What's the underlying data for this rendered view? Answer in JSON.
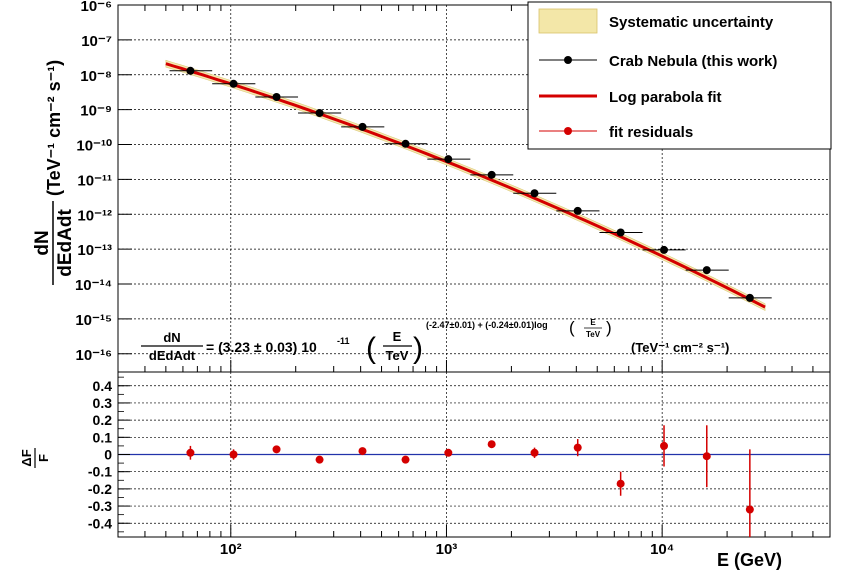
{
  "chart_data": [
    {
      "type": "scatter",
      "panel": "spectrum",
      "xscale": "log",
      "yscale": "log",
      "xlim": [
        30,
        60000
      ],
      "ylim": [
        3e-17,
        1e-06
      ],
      "grid": true,
      "ylabel_fraction": {
        "numerator": "dN",
        "denominator": "dEdAdt"
      },
      "ylabel_units": "(TeV⁻¹ cm⁻² s⁻¹)",
      "x_tick_labels": [
        "10²",
        "10³",
        "10⁴"
      ],
      "x_tick_values": [
        100,
        1000,
        10000
      ],
      "y_tick_labels": [
        "10⁻¹⁶",
        "10⁻¹⁵",
        "10⁻¹⁴",
        "10⁻¹³",
        "10⁻¹²",
        "10⁻¹¹",
        "10⁻¹⁰",
        "10⁻⁹",
        "10⁻⁸",
        "10⁻⁷",
        "10⁻⁶"
      ],
      "y_tick_values": [
        1e-16,
        1e-15,
        1e-14,
        1e-13,
        1e-12,
        1e-11,
        1e-10,
        1e-09,
        1e-08,
        1e-07,
        1e-06
      ],
      "legend": {
        "placement": "top-right",
        "entries": [
          {
            "label": "Systematic uncertainty",
            "symbol": "band",
            "color": "#e6d27a"
          },
          {
            "label": "Crab Nebula (this work)",
            "symbol": "marker-line",
            "color": "#000000"
          },
          {
            "label": "Log parabola fit",
            "symbol": "line",
            "color": "#d40000"
          },
          {
            "label": "fit residuals",
            "symbol": "marker-line",
            "color": "#d40000"
          }
        ]
      },
      "fit": {
        "function": "log parabola",
        "norm": 3.23e-11,
        "index": -2.47,
        "curvature": -0.24,
        "e0_TeV": 1,
        "e_range_GeV": [
          50,
          30000
        ],
        "color": "#d40000"
      },
      "formula": {
        "frac_num": "dN",
        "frac_den": "dEdAdt",
        "eq_part": "= (3.23 ± 0.03) 10",
        "exp_part": "-11",
        "e_num": "E",
        "e_den": "TeV",
        "power_part": "(-2.47±0.01) + (-0.24±0.01)log",
        "units": "(TeV⁻¹ cm⁻² s⁻¹)"
      },
      "series": [
        {
          "name": "Crab Nebula (this work)",
          "color": "#000000",
          "x": [
            65,
            103,
            163,
            258,
            408,
            646,
            1020,
            1620,
            2560,
            4060,
            6420,
            10200,
            16100,
            25500
          ],
          "xerr_low": [
            52,
            82,
            130,
            205,
            325,
            515,
            815,
            1290,
            2040,
            3230,
            5120,
            8110,
            12850,
            20350
          ],
          "xerr_high": [
            82,
            130,
            205,
            325,
            515,
            815,
            1290,
            2040,
            3230,
            5120,
            8110,
            12850,
            20350,
            32200
          ],
          "y": [
            1.3e-08,
            5.5e-09,
            2.3e-09,
            8e-10,
            3.2e-10,
            1.05e-10,
            3.8e-11,
            1.35e-11,
            4e-12,
            1.25e-12,
            3e-13,
            9.5e-14,
            2.5e-14,
            4e-15
          ],
          "yerr_rel": [
            0.05,
            0.05,
            0.05,
            0.05,
            0.05,
            0.05,
            0.05,
            0.05,
            0.05,
            0.05,
            0.06,
            0.1,
            0.15,
            0.3
          ]
        }
      ],
      "systematic_band": {
        "label": "Systematic uncertainty",
        "color": "#e6d27a",
        "relative_width": 0.25
      }
    },
    {
      "type": "scatter",
      "panel": "residuals",
      "xscale": "log",
      "xlim": [
        30,
        60000
      ],
      "ylim": [
        -0.48,
        0.48
      ],
      "grid": true,
      "ylabel_num": "ΔF",
      "ylabel_den": "F",
      "xlabel": "E (GeV)",
      "y_tick_labels": [
        "0.4",
        "0.3",
        "0.2",
        "0.1",
        "0",
        "-0.1",
        "-0.2",
        "-0.3",
        "-0.4"
      ],
      "y_tick_values": [
        0.4,
        0.3,
        0.2,
        0.1,
        0,
        -0.1,
        -0.2,
        -0.3,
        -0.4
      ],
      "zero_line_color": "#2233aa",
      "series": [
        {
          "name": "fit residuals",
          "color": "#d40000",
          "x": [
            65,
            103,
            163,
            258,
            408,
            646,
            1020,
            1620,
            2560,
            4060,
            6420,
            10200,
            16100,
            25500
          ],
          "y": [
            0.01,
            0.0,
            0.03,
            -0.03,
            0.02,
            -0.03,
            0.01,
            0.06,
            0.01,
            0.04,
            -0.17,
            0.05,
            -0.01,
            -0.32
          ],
          "yerr": [
            0.04,
            0.03,
            0.02,
            0.02,
            0.02,
            0.02,
            0.02,
            0.02,
            0.03,
            0.05,
            0.07,
            0.12,
            0.18,
            0.35
          ]
        }
      ]
    }
  ]
}
